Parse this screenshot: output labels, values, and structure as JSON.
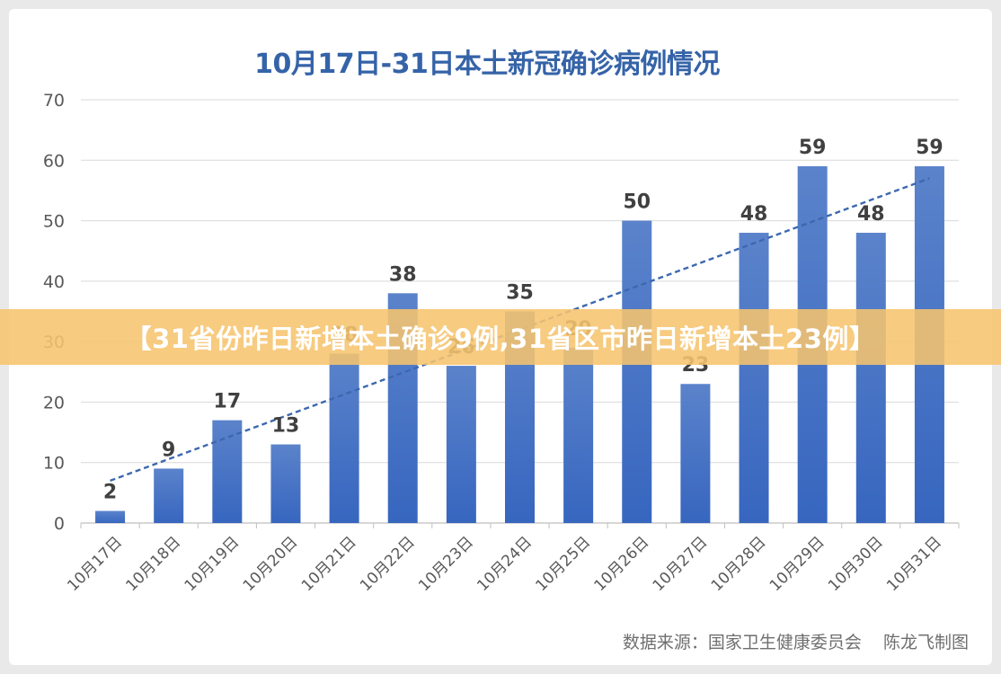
{
  "chart_data": {
    "type": "bar",
    "title": "10月17日-31日本土新冠确诊病例情况",
    "categories": [
      "10月17日",
      "10月18日",
      "10月19日",
      "10月20日",
      "10月21日",
      "10月22日",
      "10月23日",
      "10月24日",
      "10月25日",
      "10月26日",
      "10月27日",
      "10月28日",
      "10月29日",
      "10月30日",
      "10月31日"
    ],
    "values": [
      2,
      9,
      17,
      13,
      28,
      38,
      26,
      35,
      29,
      50,
      23,
      48,
      59,
      48,
      59
    ],
    "data_labels": [
      "2",
      "9",
      "17",
      "13",
      "28",
      "38",
      "26",
      "35",
      "29",
      "50",
      "23",
      "48",
      "59",
      "48",
      "59"
    ],
    "ylim": [
      0,
      70
    ],
    "yticks": [
      0,
      10,
      20,
      30,
      40,
      50,
      60,
      70
    ],
    "ytick_labels": [
      "0",
      "10",
      "20",
      "30",
      "40",
      "50",
      "60",
      "70"
    ],
    "trendline": {
      "style": "dashed",
      "start_value": 7,
      "end_value": 57
    },
    "grid": true,
    "legend": "none",
    "colors": {
      "bar_top": "#5b83cb",
      "bar_bottom": "#3766bf",
      "trend": "#3c68b0",
      "title": "#3563a8"
    }
  },
  "banner": {
    "text": "【31省份昨日新增本土确诊9例,31省区市昨日新增本土23例】"
  },
  "source": {
    "text": "数据来源：国家卫生健康委员会    陈龙飞制图"
  }
}
